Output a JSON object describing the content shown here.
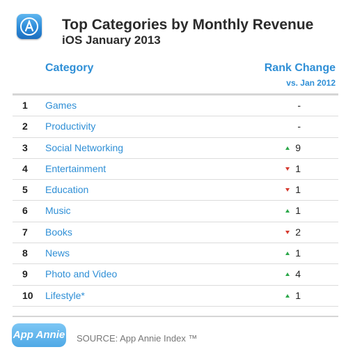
{
  "header": {
    "icon": "app-store-icon",
    "title": "Top Categories by Monthly Revenue",
    "subtitle": "iOS January 2013"
  },
  "table": {
    "columns": {
      "category": "Category",
      "rank_change": "Rank Change",
      "rank_change_sub": "vs. Jan 2012"
    },
    "rows": [
      {
        "rank": "1",
        "category": "Games",
        "direction": "none",
        "change": "-"
      },
      {
        "rank": "2",
        "category": "Productivity",
        "direction": "none",
        "change": "-"
      },
      {
        "rank": "3",
        "category": "Social Networking",
        "direction": "up",
        "change": "9"
      },
      {
        "rank": "4",
        "category": "Entertainment",
        "direction": "down",
        "change": "1"
      },
      {
        "rank": "5",
        "category": "Education",
        "direction": "down",
        "change": "1"
      },
      {
        "rank": "6",
        "category": "Music",
        "direction": "up",
        "change": "1"
      },
      {
        "rank": "7",
        "category": "Books",
        "direction": "down",
        "change": "2"
      },
      {
        "rank": "8",
        "category": "News",
        "direction": "up",
        "change": "1"
      },
      {
        "rank": "9",
        "category": "Photo and Video",
        "direction": "up",
        "change": "4"
      },
      {
        "rank": "10",
        "category": "Lifestyle*",
        "direction": "up",
        "change": "1"
      }
    ]
  },
  "footer": {
    "logo_text": "App Annie",
    "source": "SOURCE: App Annie Index ™"
  },
  "colors": {
    "accent": "#2f8fd6",
    "up": "#2ca84a",
    "down": "#d63a2f"
  }
}
